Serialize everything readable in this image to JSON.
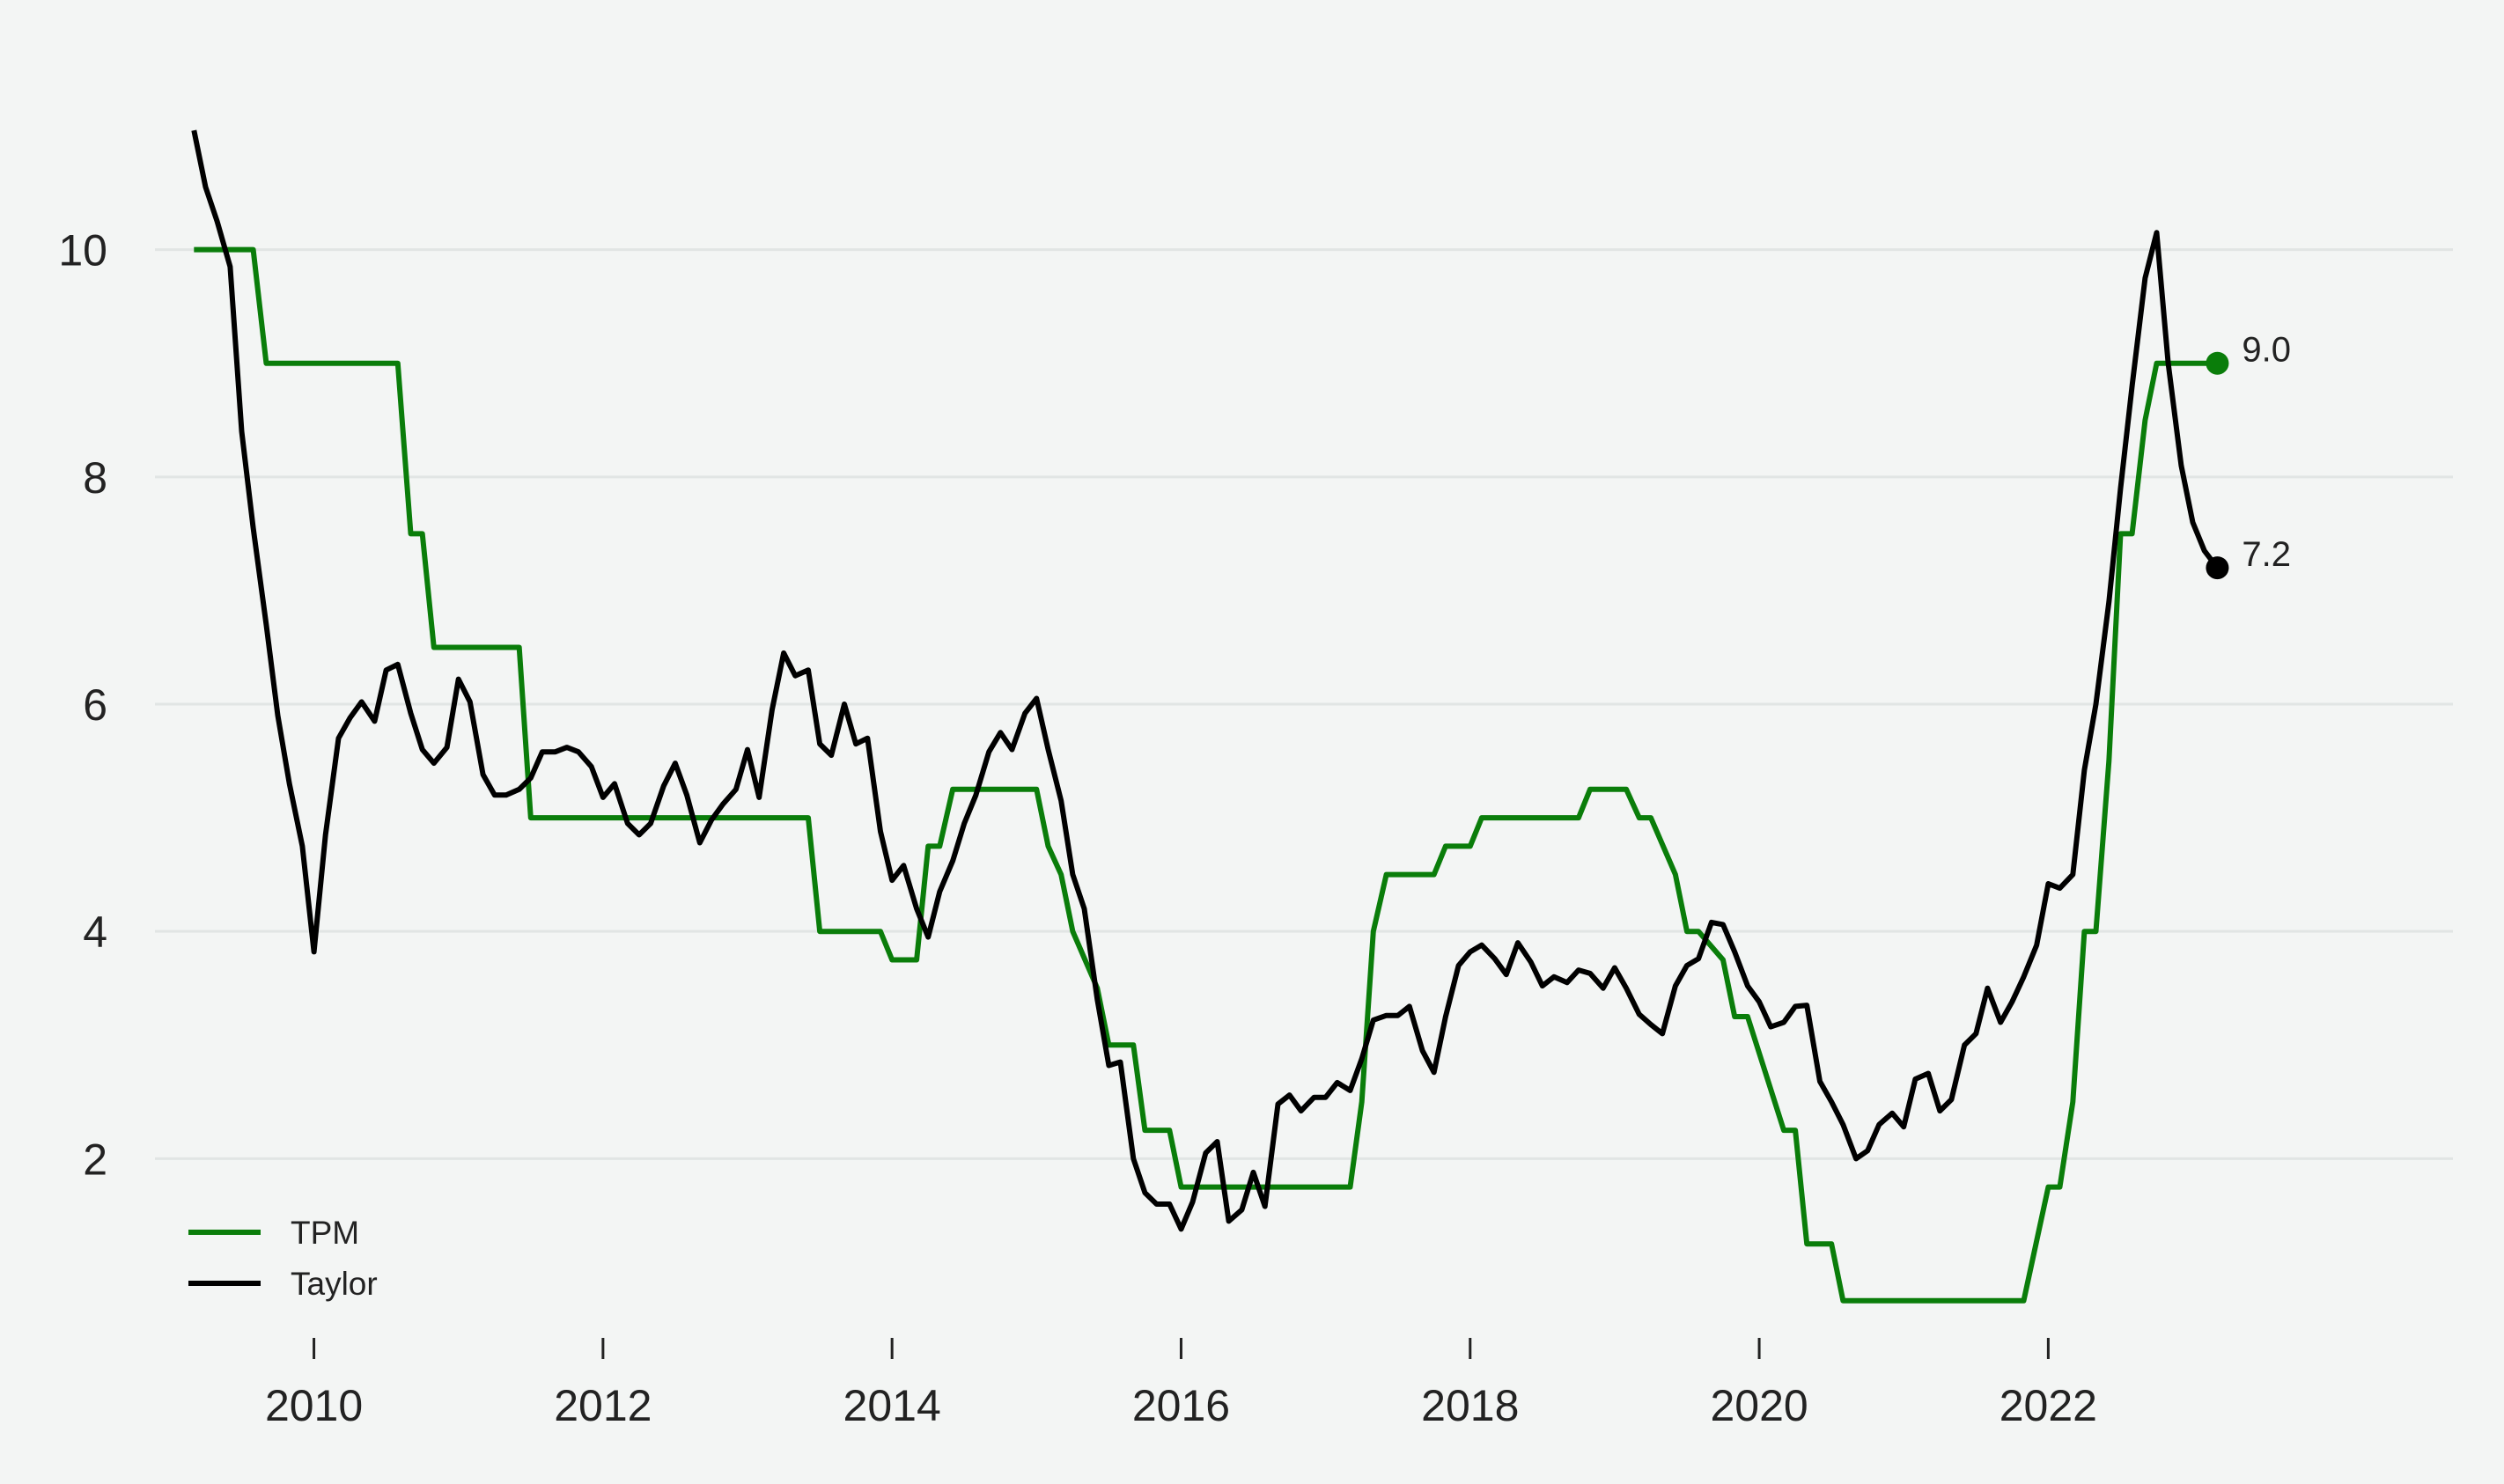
{
  "chart_data": {
    "type": "line",
    "title": "",
    "xlabel": "",
    "ylabel": "",
    "xlim": [
      2008.9,
      2024.8
    ],
    "ylim": [
      0.5,
      11.5
    ],
    "x_ticks": [
      2010,
      2012,
      2014,
      2016,
      2018,
      2020,
      2022
    ],
    "y_ticks": [
      2,
      4,
      6,
      8,
      10
    ],
    "grid": "horizontal",
    "legend_position": "bottom-left",
    "series": [
      {
        "name": "TPM",
        "color": "#0a7d0a",
        "end_label": "9.0",
        "points": [
          [
            2009.17,
            10.0
          ],
          [
            2009.58,
            10.0
          ],
          [
            2009.67,
            9.0
          ],
          [
            2010.58,
            9.0
          ],
          [
            2010.67,
            7.5
          ],
          [
            2010.75,
            7.5
          ],
          [
            2010.83,
            6.5
          ],
          [
            2011.42,
            6.5
          ],
          [
            2011.5,
            5.0
          ],
          [
            2013.42,
            5.0
          ],
          [
            2013.5,
            4.0
          ],
          [
            2013.92,
            4.0
          ],
          [
            2014.0,
            3.75
          ],
          [
            2014.17,
            3.75
          ],
          [
            2014.25,
            4.75
          ],
          [
            2014.33,
            4.75
          ],
          [
            2014.42,
            5.25
          ],
          [
            2015.0,
            5.25
          ],
          [
            2015.08,
            4.75
          ],
          [
            2015.17,
            4.5
          ],
          [
            2015.25,
            4.0
          ],
          [
            2015.42,
            3.5
          ],
          [
            2015.5,
            3.0
          ],
          [
            2015.67,
            3.0
          ],
          [
            2015.75,
            2.25
          ],
          [
            2015.92,
            2.25
          ],
          [
            2016.0,
            1.75
          ],
          [
            2017.17,
            1.75
          ],
          [
            2017.25,
            2.5
          ],
          [
            2017.33,
            4.0
          ],
          [
            2017.42,
            4.5
          ],
          [
            2017.75,
            4.5
          ],
          [
            2017.83,
            4.75
          ],
          [
            2018.0,
            4.75
          ],
          [
            2018.08,
            5.0
          ],
          [
            2018.75,
            5.0
          ],
          [
            2018.83,
            5.25
          ],
          [
            2019.08,
            5.25
          ],
          [
            2019.17,
            5.0
          ],
          [
            2019.25,
            5.0
          ],
          [
            2019.42,
            4.5
          ],
          [
            2019.5,
            4.0
          ],
          [
            2019.58,
            4.0
          ],
          [
            2019.75,
            3.75
          ],
          [
            2019.83,
            3.25
          ],
          [
            2019.92,
            3.25
          ],
          [
            2020.17,
            2.25
          ],
          [
            2020.25,
            2.25
          ],
          [
            2020.33,
            1.25
          ],
          [
            2020.5,
            1.25
          ],
          [
            2020.58,
            0.75
          ],
          [
            2021.83,
            0.75
          ],
          [
            2022.0,
            1.75
          ],
          [
            2022.08,
            1.75
          ],
          [
            2022.17,
            2.5
          ],
          [
            2022.25,
            4.0
          ],
          [
            2022.33,
            4.0
          ],
          [
            2022.42,
            5.5
          ],
          [
            2022.5,
            7.5
          ],
          [
            2022.58,
            7.5
          ],
          [
            2022.67,
            8.5
          ],
          [
            2022.75,
            9.0
          ],
          [
            2023.17,
            9.0
          ]
        ]
      },
      {
        "name": "Taylor",
        "color": "#000000",
        "end_label": "7.2",
        "points": [
          [
            2009.17,
            11.05
          ],
          [
            2009.25,
            10.55
          ],
          [
            2009.33,
            10.25
          ],
          [
            2009.42,
            9.85
          ],
          [
            2009.5,
            8.4
          ],
          [
            2009.58,
            7.55
          ],
          [
            2009.67,
            6.7
          ],
          [
            2009.75,
            5.9
          ],
          [
            2009.83,
            5.3
          ],
          [
            2009.92,
            4.75
          ],
          [
            2010.0,
            3.82
          ],
          [
            2010.08,
            4.85
          ],
          [
            2010.17,
            5.7
          ],
          [
            2010.25,
            5.88
          ],
          [
            2010.33,
            6.02
          ],
          [
            2010.42,
            5.85
          ],
          [
            2010.5,
            6.3
          ],
          [
            2010.58,
            6.35
          ],
          [
            2010.67,
            5.92
          ],
          [
            2010.75,
            5.6
          ],
          [
            2010.83,
            5.48
          ],
          [
            2010.92,
            5.62
          ],
          [
            2011.0,
            6.22
          ],
          [
            2011.08,
            6.02
          ],
          [
            2011.17,
            5.38
          ],
          [
            2011.25,
            5.2
          ],
          [
            2011.33,
            5.2
          ],
          [
            2011.42,
            5.25
          ],
          [
            2011.5,
            5.35
          ],
          [
            2011.58,
            5.58
          ],
          [
            2011.67,
            5.58
          ],
          [
            2011.75,
            5.62
          ],
          [
            2011.83,
            5.58
          ],
          [
            2011.92,
            5.45
          ],
          [
            2012.0,
            5.18
          ],
          [
            2012.08,
            5.3
          ],
          [
            2012.17,
            4.95
          ],
          [
            2012.25,
            4.85
          ],
          [
            2012.33,
            4.95
          ],
          [
            2012.42,
            5.28
          ],
          [
            2012.5,
            5.48
          ],
          [
            2012.58,
            5.2
          ],
          [
            2012.67,
            4.78
          ],
          [
            2012.75,
            4.98
          ],
          [
            2012.83,
            5.12
          ],
          [
            2012.92,
            5.25
          ],
          [
            2013.0,
            5.6
          ],
          [
            2013.08,
            5.18
          ],
          [
            2013.17,
            5.95
          ],
          [
            2013.25,
            6.45
          ],
          [
            2013.33,
            6.25
          ],
          [
            2013.42,
            6.3
          ],
          [
            2013.5,
            5.65
          ],
          [
            2013.58,
            5.55
          ],
          [
            2013.67,
            6.0
          ],
          [
            2013.75,
            5.65
          ],
          [
            2013.83,
            5.7
          ],
          [
            2013.92,
            4.88
          ],
          [
            2014.0,
            4.45
          ],
          [
            2014.08,
            4.58
          ],
          [
            2014.17,
            4.2
          ],
          [
            2014.25,
            3.95
          ],
          [
            2014.33,
            4.35
          ],
          [
            2014.42,
            4.62
          ],
          [
            2014.5,
            4.95
          ],
          [
            2014.58,
            5.2
          ],
          [
            2014.67,
            5.58
          ],
          [
            2014.75,
            5.75
          ],
          [
            2014.83,
            5.6
          ],
          [
            2014.92,
            5.92
          ],
          [
            2015.0,
            6.05
          ],
          [
            2015.08,
            5.6
          ],
          [
            2015.17,
            5.15
          ],
          [
            2015.25,
            4.5
          ],
          [
            2015.33,
            4.2
          ],
          [
            2015.42,
            3.4
          ],
          [
            2015.5,
            2.82
          ],
          [
            2015.58,
            2.85
          ],
          [
            2015.67,
            2.0
          ],
          [
            2015.75,
            1.7
          ],
          [
            2015.83,
            1.6
          ],
          [
            2015.92,
            1.6
          ],
          [
            2016.0,
            1.38
          ],
          [
            2016.08,
            1.62
          ],
          [
            2016.17,
            2.05
          ],
          [
            2016.25,
            2.15
          ],
          [
            2016.33,
            1.45
          ],
          [
            2016.42,
            1.55
          ],
          [
            2016.5,
            1.88
          ],
          [
            2016.58,
            1.58
          ],
          [
            2016.67,
            2.48
          ],
          [
            2016.75,
            2.56
          ],
          [
            2016.83,
            2.42
          ],
          [
            2016.92,
            2.54
          ],
          [
            2017.0,
            2.54
          ],
          [
            2017.08,
            2.67
          ],
          [
            2017.17,
            2.6
          ],
          [
            2017.25,
            2.88
          ],
          [
            2017.33,
            3.22
          ],
          [
            2017.42,
            3.26
          ],
          [
            2017.5,
            3.26
          ],
          [
            2017.58,
            3.34
          ],
          [
            2017.67,
            2.95
          ],
          [
            2017.75,
            2.76
          ],
          [
            2017.83,
            3.25
          ],
          [
            2017.92,
            3.7
          ],
          [
            2018.0,
            3.82
          ],
          [
            2018.08,
            3.88
          ],
          [
            2018.17,
            3.76
          ],
          [
            2018.25,
            3.62
          ],
          [
            2018.33,
            3.9
          ],
          [
            2018.42,
            3.73
          ],
          [
            2018.5,
            3.52
          ],
          [
            2018.58,
            3.6
          ],
          [
            2018.67,
            3.55
          ],
          [
            2018.75,
            3.66
          ],
          [
            2018.83,
            3.63
          ],
          [
            2018.92,
            3.5
          ],
          [
            2019.0,
            3.68
          ],
          [
            2019.08,
            3.5
          ],
          [
            2019.17,
            3.27
          ],
          [
            2019.25,
            3.18
          ],
          [
            2019.33,
            3.1
          ],
          [
            2019.42,
            3.52
          ],
          [
            2019.5,
            3.7
          ],
          [
            2019.58,
            3.76
          ],
          [
            2019.67,
            4.08
          ],
          [
            2019.75,
            4.06
          ],
          [
            2019.83,
            3.82
          ],
          [
            2019.92,
            3.52
          ],
          [
            2020.0,
            3.38
          ],
          [
            2020.08,
            3.16
          ],
          [
            2020.17,
            3.2
          ],
          [
            2020.25,
            3.34
          ],
          [
            2020.33,
            3.35
          ],
          [
            2020.42,
            2.68
          ],
          [
            2020.5,
            2.5
          ],
          [
            2020.58,
            2.3
          ],
          [
            2020.67,
            2.0
          ],
          [
            2020.75,
            2.07
          ],
          [
            2020.83,
            2.3
          ],
          [
            2020.92,
            2.4
          ],
          [
            2021.0,
            2.28
          ],
          [
            2021.08,
            2.7
          ],
          [
            2021.17,
            2.75
          ],
          [
            2021.25,
            2.42
          ],
          [
            2021.33,
            2.52
          ],
          [
            2021.42,
            3.0
          ],
          [
            2021.5,
            3.1
          ],
          [
            2021.58,
            3.5
          ],
          [
            2021.67,
            3.2
          ],
          [
            2021.75,
            3.38
          ],
          [
            2021.83,
            3.6
          ],
          [
            2021.92,
            3.88
          ],
          [
            2022.0,
            4.42
          ],
          [
            2022.08,
            4.38
          ],
          [
            2022.17,
            4.5
          ],
          [
            2022.25,
            5.42
          ],
          [
            2022.33,
            6.0
          ],
          [
            2022.42,
            6.9
          ],
          [
            2022.5,
            7.9
          ],
          [
            2022.58,
            8.8
          ],
          [
            2022.67,
            9.75
          ],
          [
            2022.75,
            10.15
          ],
          [
            2022.83,
            9.0
          ],
          [
            2022.92,
            8.1
          ],
          [
            2023.0,
            7.6
          ],
          [
            2023.08,
            7.35
          ],
          [
            2023.17,
            7.2
          ]
        ]
      }
    ]
  }
}
